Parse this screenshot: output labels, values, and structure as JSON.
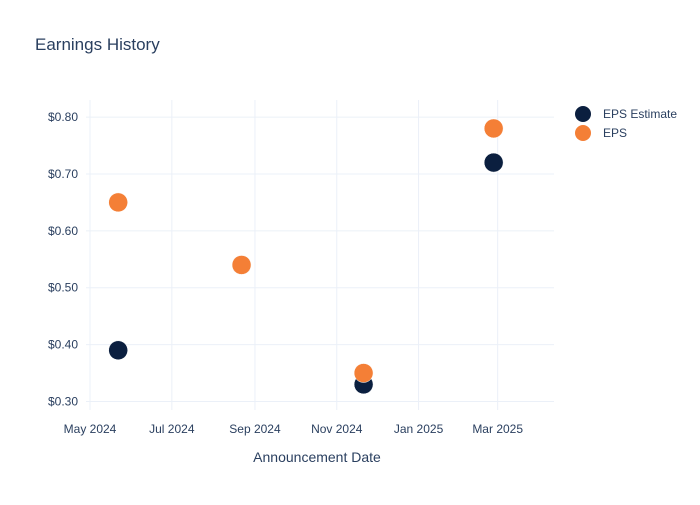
{
  "chart_data": {
    "type": "scatter",
    "title": "Earnings History",
    "xlabel": "Announcement Date",
    "ylabel": "",
    "x_type": "date",
    "xlim": [
      "2024-04-28",
      "2025-04-12"
    ],
    "ylim": [
      0.285,
      0.83
    ],
    "x_ticks": [
      {
        "value": "2024-05-01",
        "label": "May 2024"
      },
      {
        "value": "2024-07-01",
        "label": "Jul 2024"
      },
      {
        "value": "2024-09-01",
        "label": "Sep 2024"
      },
      {
        "value": "2024-11-01",
        "label": "Nov 2024"
      },
      {
        "value": "2025-01-01",
        "label": "Jan 2025"
      },
      {
        "value": "2025-03-01",
        "label": "Mar 2025"
      }
    ],
    "y_ticks": [
      {
        "value": 0.3,
        "label": "$0.30"
      },
      {
        "value": 0.4,
        "label": "$0.40"
      },
      {
        "value": 0.5,
        "label": "$0.50"
      },
      {
        "value": 0.6,
        "label": "$0.60"
      },
      {
        "value": 0.7,
        "label": "$0.70"
      },
      {
        "value": 0.8,
        "label": "$0.80"
      }
    ],
    "grid": true,
    "legend_position": "top-right",
    "series": [
      {
        "name": "EPS Estimate",
        "color": "#0b1f3f",
        "points": [
          {
            "x": "2024-05-22",
            "y": 0.39
          },
          {
            "x": "2024-08-22",
            "y": 0.54
          },
          {
            "x": "2024-11-21",
            "y": 0.33
          },
          {
            "x": "2025-02-26",
            "y": 0.72
          }
        ]
      },
      {
        "name": "EPS",
        "color": "#f47f36",
        "points": [
          {
            "x": "2024-05-22",
            "y": 0.65
          },
          {
            "x": "2024-08-22",
            "y": 0.54
          },
          {
            "x": "2024-11-21",
            "y": 0.35
          },
          {
            "x": "2025-02-26",
            "y": 0.78
          }
        ]
      }
    ]
  }
}
